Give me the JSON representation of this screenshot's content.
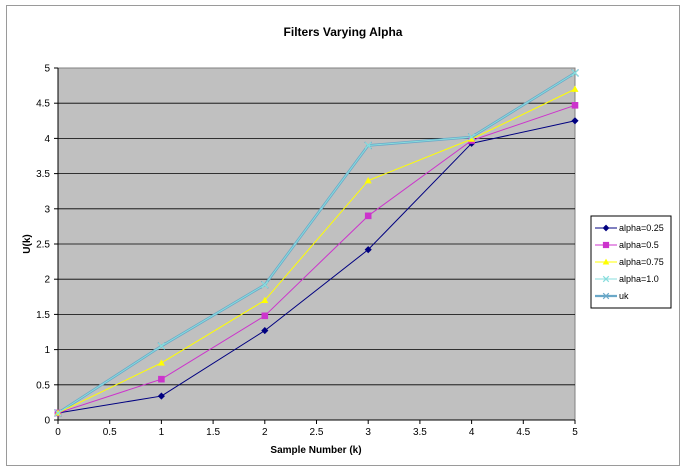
{
  "chart_data": {
    "type": "line",
    "title": "Filters Varying Alpha",
    "xlabel": "Sample Number (k)",
    "ylabel": "U(k)",
    "xlim": [
      0,
      5
    ],
    "ylim": [
      0,
      5
    ],
    "x_ticks": [
      "0",
      "0.5",
      "1",
      "1.5",
      "2",
      "2.5",
      "3",
      "3.5",
      "4",
      "4.5",
      "5"
    ],
    "y_ticks": [
      "0",
      "0.5",
      "1",
      "1.5",
      "2",
      "2.5",
      "3",
      "3.5",
      "4",
      "4.5",
      "5"
    ],
    "grid": "horizontal",
    "legend_position": "right",
    "plot_background": "#c0c0c0",
    "x": [
      0,
      1,
      2,
      3,
      4,
      5
    ],
    "series": [
      {
        "name": "alpha=0.25",
        "color": "#000080",
        "marker": "diamond",
        "line_width": 1,
        "values": [
          0.1,
          0.34,
          1.27,
          2.42,
          3.93,
          4.25
        ]
      },
      {
        "name": "alpha=0.5",
        "color": "#cc33cc",
        "marker": "square",
        "line_width": 1,
        "values": [
          0.1,
          0.58,
          1.48,
          2.9,
          3.97,
          4.47
        ]
      },
      {
        "name": "alpha=0.75",
        "color": "#ffff00",
        "marker": "triangle",
        "line_width": 1,
        "values": [
          0.1,
          0.81,
          1.7,
          3.4,
          3.99,
          4.7
        ]
      },
      {
        "name": "alpha=1.0",
        "color": "#88dddd",
        "marker": "x",
        "line_width": 1,
        "values": [
          0.1,
          1.05,
          1.92,
          3.9,
          4.02,
          4.93
        ]
      },
      {
        "name": "uk",
        "color": "#6aa8c8",
        "marker": "x",
        "line_width": 2.6,
        "values": [
          0.1,
          1.05,
          1.92,
          3.9,
          4.02,
          4.93
        ]
      }
    ]
  }
}
